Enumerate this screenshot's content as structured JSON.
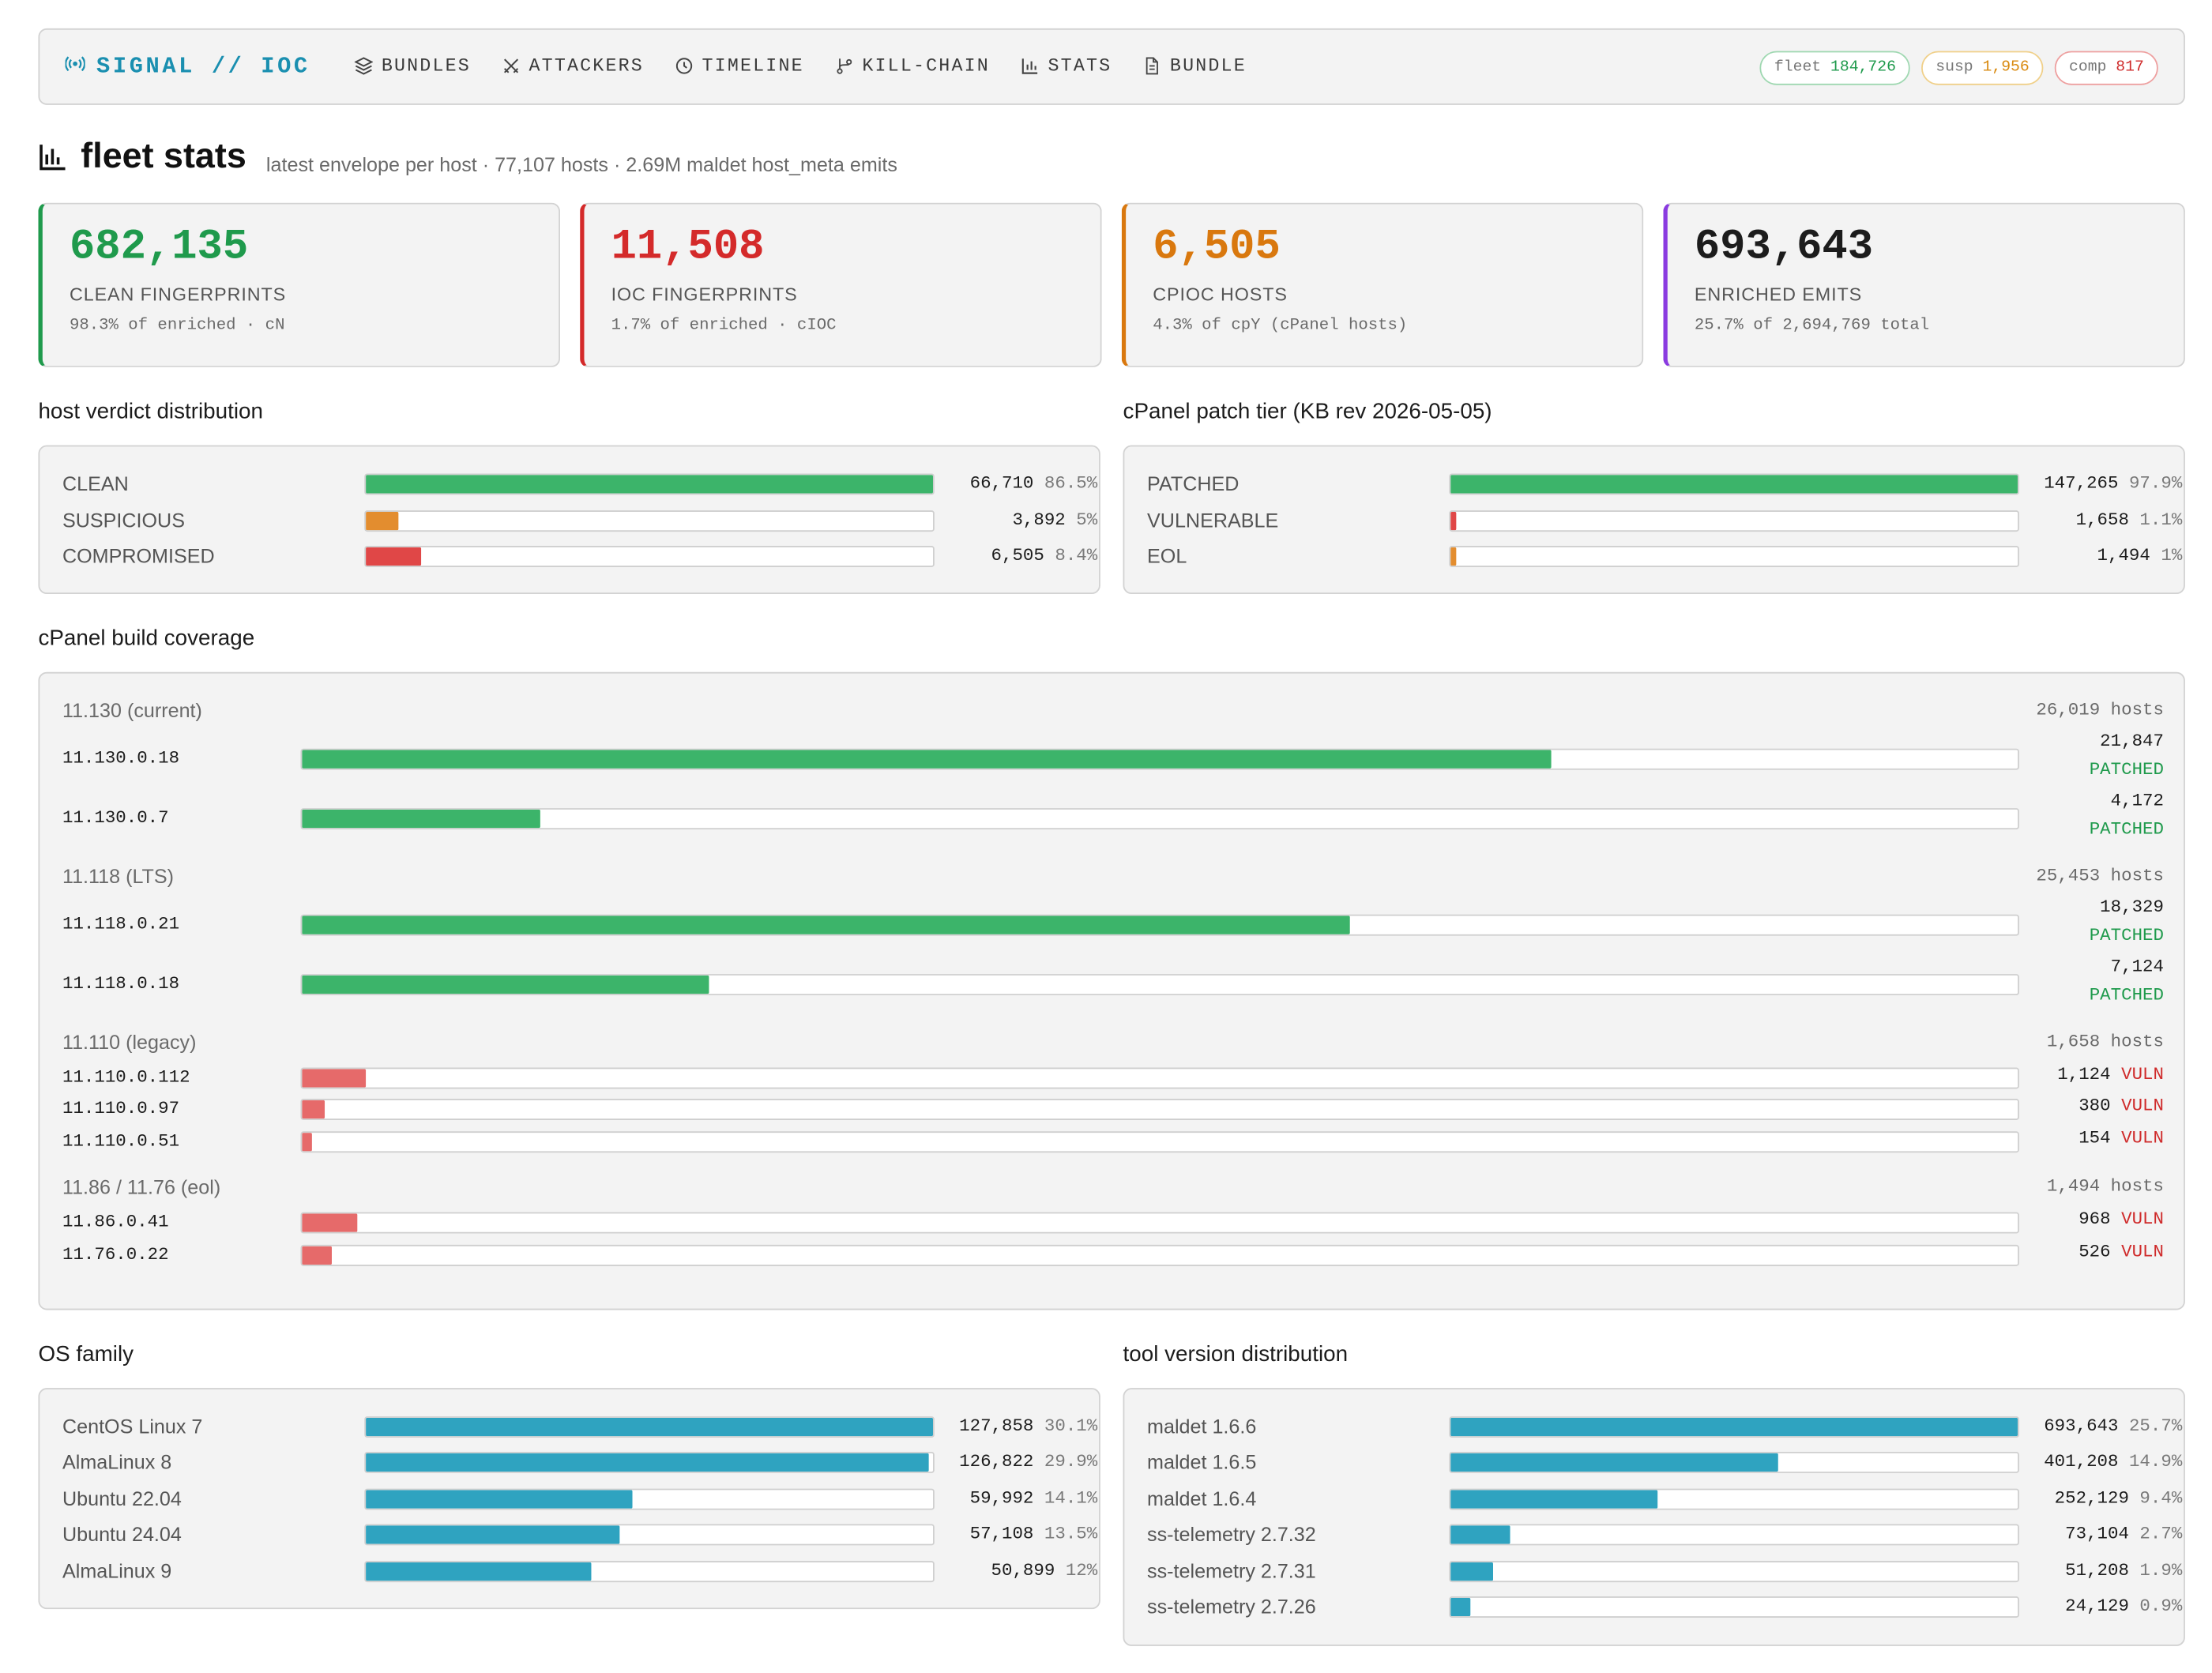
{
  "nav": {
    "brand": "SIGNAL // IOC",
    "links": [
      "BUNDLES",
      "ATTACKERS",
      "TIMELINE",
      "KILL-CHAIN",
      "STATS",
      "BUNDLE"
    ],
    "pills": {
      "fleet_label": "fleet",
      "fleet_value": "184,726",
      "susp_label": "susp",
      "susp_value": "1,956",
      "comp_label": "comp",
      "comp_value": "817"
    }
  },
  "page": {
    "title": "fleet stats",
    "subtitle": "latest envelope per host · 77,107 hosts · 2.69M maldet host_meta emits"
  },
  "kpis": [
    {
      "value": "682,135",
      "label": "CLEAN FINGERPRINTS",
      "note": "98.3% of enriched · cN",
      "color": "#1f9a4c"
    },
    {
      "value": "11,508",
      "label": "IOC FINGERPRINTS",
      "note": "1.7% of enriched · cIOC",
      "color": "#d42a2a"
    },
    {
      "value": "6,505",
      "label": "CPIOC HOSTS",
      "note": "4.3% of cpY (cPanel hosts)",
      "color": "#d9780e"
    },
    {
      "value": "693,643",
      "label": "ENRICHED EMITS",
      "note": "25.7% of 2,694,769 total",
      "color": "#8a3be0"
    }
  ],
  "verdict": {
    "heading": "host verdict distribution",
    "rows": [
      {
        "label": "CLEAN",
        "count": "66,710",
        "pct": "86.5%",
        "fraction": 1.0,
        "color": "#3cb46a"
      },
      {
        "label": "SUSPICIOUS",
        "count": "3,892",
        "pct": "5%",
        "fraction": 0.058,
        "color": "#e38d2f"
      },
      {
        "label": "COMPROMISED",
        "count": "6,505",
        "pct": "8.4%",
        "fraction": 0.097,
        "color": "#e04747"
      }
    ]
  },
  "patch": {
    "heading": "cPanel patch tier (KB rev 2026-05-05)",
    "rows": [
      {
        "label": "PATCHED",
        "count": "147,265",
        "pct": "97.9%",
        "fraction": 1.0,
        "color": "#3cb46a"
      },
      {
        "label": "VULNERABLE",
        "count": "1,658",
        "pct": "1.1%",
        "fraction": 0.011,
        "color": "#e04747"
      },
      {
        "label": "EOL",
        "count": "1,494",
        "pct": "1%",
        "fraction": 0.01,
        "color": "#e38d2f"
      }
    ]
  },
  "build": {
    "heading": "cPanel build coverage",
    "groups": [
      {
        "name": "11.130 (current)",
        "hosts": "26,019 hosts",
        "versions": [
          {
            "version": "11.130.0.18",
            "count": "21,847",
            "status": "PATCHED",
            "fraction": 0.728
          },
          {
            "version": "11.130.0.7",
            "count": "4,172",
            "status": "PATCHED",
            "fraction": 0.139
          }
        ]
      },
      {
        "name": "11.118 (LTS)",
        "hosts": "25,453 hosts",
        "versions": [
          {
            "version": "11.118.0.21",
            "count": "18,329",
            "status": "PATCHED",
            "fraction": 0.611
          },
          {
            "version": "11.118.0.18",
            "count": "7,124",
            "status": "PATCHED",
            "fraction": 0.237
          }
        ]
      },
      {
        "name": "11.110 (legacy)",
        "hosts": "1,658 hosts",
        "versions": [
          {
            "version": "11.110.0.112",
            "count": "1,124",
            "status": "VULN",
            "fraction": 0.037
          },
          {
            "version": "11.110.0.97",
            "count": "380",
            "status": "VULN",
            "fraction": 0.013
          },
          {
            "version": "11.110.0.51",
            "count": "154",
            "status": "VULN",
            "fraction": 0.005
          }
        ]
      },
      {
        "name": "11.86 / 11.76 (eol)",
        "hosts": "1,494 hosts",
        "versions": [
          {
            "version": "11.86.0.41",
            "count": "968",
            "status": "VULN",
            "fraction": 0.032
          },
          {
            "version": "11.76.0.22",
            "count": "526",
            "status": "VULN",
            "fraction": 0.017
          }
        ]
      }
    ]
  },
  "os": {
    "heading": "OS family",
    "rows": [
      {
        "label": "CentOS Linux 7",
        "count": "127,858",
        "pct": "30.1%",
        "fraction": 1.0
      },
      {
        "label": "AlmaLinux 8",
        "count": "126,822",
        "pct": "29.9%",
        "fraction": 0.992
      },
      {
        "label": "Ubuntu 22.04",
        "count": "59,992",
        "pct": "14.1%",
        "fraction": 0.469
      },
      {
        "label": "Ubuntu 24.04",
        "count": "57,108",
        "pct": "13.5%",
        "fraction": 0.447
      },
      {
        "label": "AlmaLinux 9",
        "count": "50,899",
        "pct": "12%",
        "fraction": 0.398
      }
    ]
  },
  "tools": {
    "heading": "tool version distribution",
    "rows": [
      {
        "label": "maldet 1.6.6",
        "count": "693,643",
        "pct": "25.7%",
        "fraction": 1.0
      },
      {
        "label": "maldet 1.6.5",
        "count": "401,208",
        "pct": "14.9%",
        "fraction": 0.578
      },
      {
        "label": "maldet 1.6.4",
        "count": "252,129",
        "pct": "9.4%",
        "fraction": 0.364
      },
      {
        "label": "ss-telemetry 2.7.32",
        "count": "73,104",
        "pct": "2.7%",
        "fraction": 0.105
      },
      {
        "label": "ss-telemetry 2.7.31",
        "count": "51,208",
        "pct": "1.9%",
        "fraction": 0.074
      },
      {
        "label": "ss-telemetry 2.7.26",
        "count": "24,129",
        "pct": "0.9%",
        "fraction": 0.035
      }
    ]
  },
  "colors": {
    "accent": "#1a8fb0",
    "teal_bar": "#2fa3c0",
    "patched_bar": "#3cb46a",
    "vuln_bar": "#e66a6a"
  },
  "icons": {
    "brand": "broadcast-icon",
    "nav": [
      "layers-icon",
      "crossed-swords-icon",
      "clock-icon",
      "branch-icon",
      "bar-chart-icon",
      "document-icon"
    ],
    "title": "bar-chart-icon"
  }
}
